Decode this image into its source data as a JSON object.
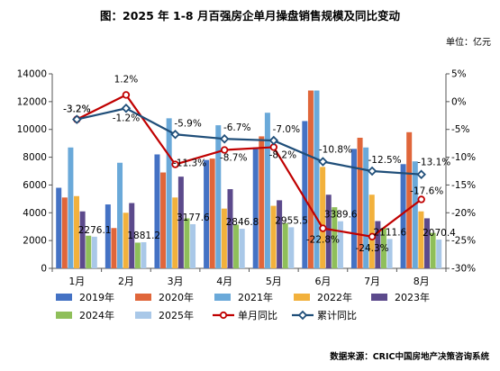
{
  "header": {
    "title": "图：2025 年 1-8 月百强房企单月操盘销售规模及同比变动",
    "unit": "单位：亿元"
  },
  "footer": {
    "source": "数据来源：CRIC中国房地产决策咨询系统"
  },
  "colors": {
    "2019年": "#4472C4",
    "2020年": "#E0663A",
    "2021年": "#6AA9D9",
    "2022年": "#F2B13C",
    "2023年": "#5C4A8C",
    "2024年": "#8FBF5A",
    "2025年": "#A9C8E8",
    "单月同比": "#C00000",
    "累计同比": "#1F4E79"
  },
  "chart_data": {
    "type": "bar",
    "categories": [
      "1月",
      "2月",
      "3月",
      "4月",
      "5月",
      "6月",
      "7月",
      "8月"
    ],
    "y_left": {
      "min": 0,
      "max": 14000,
      "ticks": [
        0,
        2000,
        4000,
        6000,
        8000,
        10000,
        12000,
        14000
      ]
    },
    "y_right": {
      "min": -30,
      "max": 5,
      "ticks": [
        "5%",
        "0%",
        "-5%",
        "-10%",
        "-15%",
        "-20%",
        "-25%",
        "-30%"
      ],
      "tick_values": [
        5,
        0,
        -5,
        -10,
        -15,
        -20,
        -25,
        -30
      ]
    },
    "series": [
      {
        "name": "2019年",
        "values": [
          5800,
          4600,
          8200,
          7800,
          8700,
          10600,
          8600,
          7500
        ]
      },
      {
        "name": "2020年",
        "values": [
          5100,
          2900,
          6900,
          7900,
          9500,
          12800,
          9400,
          9800
        ]
      },
      {
        "name": "2021年",
        "values": [
          8700,
          7600,
          10800,
          10300,
          11200,
          12800,
          8700,
          7700
        ]
      },
      {
        "name": "2022年",
        "values": [
          5200,
          4000,
          5100,
          4300,
          4500,
          7300,
          5300,
          4100
        ]
      },
      {
        "name": "2023年",
        "values": [
          4100,
          4700,
          6600,
          5700,
          4900,
          5300,
          3400,
          3600
        ]
      },
      {
        "name": "2024年",
        "values": [
          2350,
          1850,
          3600,
          3150,
          3250,
          4400,
          2900,
          2550
        ]
      },
      {
        "name": "2025年",
        "values": [
          2276.1,
          1881.2,
          3177.6,
          2846.8,
          2955.5,
          3389.6,
          2111.6,
          2070.4
        ]
      }
    ],
    "bar_labels": [
      "2276.1",
      "1881.2",
      "3177.6",
      "2846.8",
      "2955.5",
      "3389.6",
      "2111.6",
      "2070.4"
    ],
    "lines": [
      {
        "name": "单月同比",
        "values": [
          -3.2,
          1.2,
          -11.3,
          -8.7,
          -8.2,
          -22.8,
          -24.3,
          -17.6
        ],
        "labels": [
          "-3.2%",
          "1.2%",
          "-11.3%",
          "-8.7%",
          "-8.2%",
          "-22.8%",
          "-24.3%",
          "-17.6%"
        ]
      },
      {
        "name": "累计同比",
        "values": [
          -3.2,
          -1.2,
          -5.9,
          -6.7,
          -7.0,
          -10.8,
          -12.5,
          -13.1
        ],
        "labels": [
          "-3.2%",
          "-1.2%",
          "-5.9%",
          "-6.7%",
          "-7.0%",
          "-10.8%",
          "-12.5%",
          "-13.1%"
        ]
      }
    ],
    "legend": [
      "2019年",
      "2020年",
      "2021年",
      "2022年",
      "2023年",
      "2024年",
      "2025年",
      "单月同比",
      "累计同比"
    ],
    "legend_position": "bottom",
    "grid": false
  }
}
